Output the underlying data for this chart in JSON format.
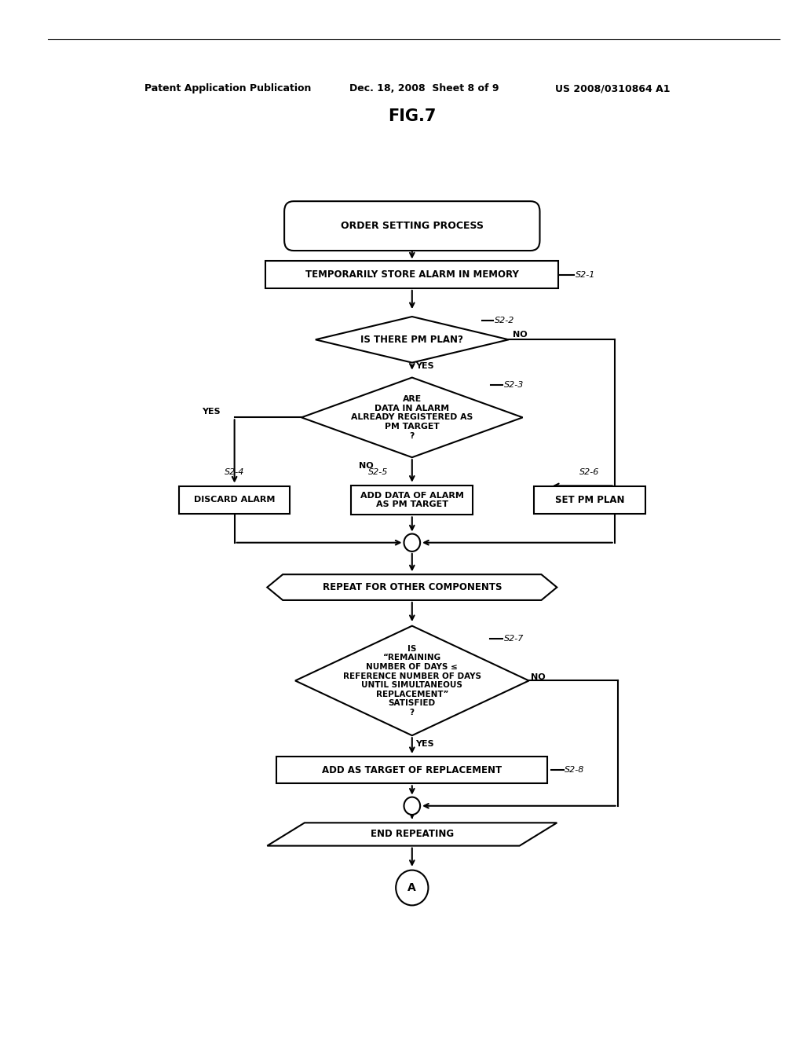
{
  "title": "FIG.7",
  "header_left": "Patent Application Publication",
  "header_mid": "Dec. 18, 2008  Sheet 8 of 9",
  "header_right": "US 2008/0310864 A1",
  "bg_color": "#ffffff",
  "text_color": "#000000"
}
